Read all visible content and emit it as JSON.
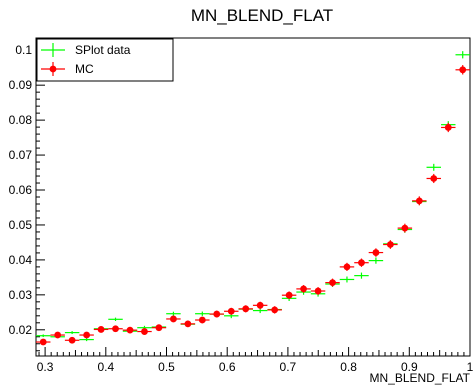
{
  "chart_data": {
    "type": "scatter",
    "title": "MN_BLEND_FLAT",
    "xlabel": "MN_BLEND_FLAT",
    "ylabel": "",
    "xlim": [
      0.285,
      1.0
    ],
    "ylim": [
      0.0125,
      0.1035
    ],
    "x_ticks": [
      0.3,
      0.4,
      0.5,
      0.6,
      0.7,
      0.8,
      0.9,
      1
    ],
    "x_tick_labels": [
      "0.3",
      "0.4",
      "0.5",
      "0.6",
      "0.7",
      "0.8",
      "0.9",
      "1"
    ],
    "y_ticks": [
      0.02,
      0.03,
      0.04,
      0.05,
      0.06,
      0.07,
      0.08,
      0.09,
      0.1
    ],
    "y_tick_labels": [
      "0.02",
      "0.03",
      "0.04",
      "0.05",
      "0.06",
      "0.07",
      "0.08",
      "0.09",
      "0.1"
    ],
    "bin_width": 0.02383,
    "legend_position": "top-left",
    "grid": false,
    "series": [
      {
        "name": "SPlot data",
        "color": "#00ff00",
        "x": [
          0.2969,
          0.3207,
          0.3445,
          0.3684,
          0.3922,
          0.416,
          0.4399,
          0.4637,
          0.4875,
          0.5114,
          0.5352,
          0.559,
          0.5828,
          0.6067,
          0.6305,
          0.6543,
          0.6782,
          0.702,
          0.7258,
          0.7497,
          0.7735,
          0.7973,
          0.8212,
          0.845,
          0.8688,
          0.8927,
          0.9165,
          0.9403,
          0.9642,
          0.988
        ],
        "y": [
          0.0183,
          0.018,
          0.0192,
          0.0172,
          0.0203,
          0.023,
          0.0196,
          0.0206,
          0.0208,
          0.0246,
          0.0216,
          0.0246,
          0.0245,
          0.024,
          0.0259,
          0.0255,
          0.0258,
          0.029,
          0.0308,
          0.0303,
          0.0331,
          0.0344,
          0.0355,
          0.0398,
          0.0446,
          0.0487,
          0.0567,
          0.0665,
          0.0787,
          0.0987
        ]
      },
      {
        "name": "MC",
        "color": "#ff0000",
        "x": [
          0.2969,
          0.3207,
          0.3445,
          0.3684,
          0.3922,
          0.416,
          0.4399,
          0.4637,
          0.4875,
          0.5114,
          0.5352,
          0.559,
          0.5828,
          0.6067,
          0.6305,
          0.6543,
          0.6782,
          0.702,
          0.7258,
          0.7497,
          0.7735,
          0.7973,
          0.8212,
          0.845,
          0.8688,
          0.8927,
          0.9165,
          0.9403,
          0.9642,
          0.988
        ],
        "y": [
          0.0165,
          0.0185,
          0.017,
          0.0185,
          0.0201,
          0.0203,
          0.0199,
          0.0195,
          0.0206,
          0.0231,
          0.0217,
          0.0228,
          0.0245,
          0.0253,
          0.026,
          0.027,
          0.0257,
          0.0299,
          0.0317,
          0.0311,
          0.0335,
          0.038,
          0.0392,
          0.0421,
          0.0444,
          0.0491,
          0.0569,
          0.0633,
          0.0779,
          0.0944
        ]
      }
    ]
  }
}
